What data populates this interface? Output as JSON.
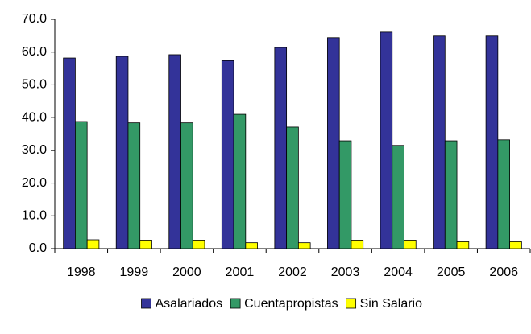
{
  "chart_data": {
    "type": "bar",
    "categories": [
      "1998",
      "1999",
      "2000",
      "2001",
      "2002",
      "2003",
      "2004",
      "2005",
      "2006"
    ],
    "series": [
      {
        "name": "Asalariados",
        "color": "#333399",
        "values": [
          58.2,
          58.7,
          59.2,
          57.4,
          61.4,
          64.4,
          66.1,
          64.9,
          64.9
        ]
      },
      {
        "name": "Cuentapropistas",
        "color": "#339966",
        "values": [
          38.8,
          38.4,
          38.4,
          41.0,
          37.1,
          32.9,
          31.5,
          32.9,
          33.2
        ]
      },
      {
        "name": "Sin Salario",
        "color": "#ffff00",
        "values": [
          2.7,
          2.6,
          2.6,
          1.8,
          1.8,
          2.6,
          2.6,
          2.1,
          2.1
        ]
      }
    ],
    "ylim": [
      0,
      70
    ],
    "yticks": [
      {
        "value": 0,
        "label": "0.0"
      },
      {
        "value": 10,
        "label": "10.0"
      },
      {
        "value": 20,
        "label": "20.0"
      },
      {
        "value": 30,
        "label": "30.0"
      },
      {
        "value": 40,
        "label": "40.0"
      },
      {
        "value": 50,
        "label": "50.0"
      },
      {
        "value": 60,
        "label": "60.0"
      },
      {
        "value": 70,
        "label": "70.0"
      }
    ],
    "grid": false,
    "legend": "bottom"
  }
}
